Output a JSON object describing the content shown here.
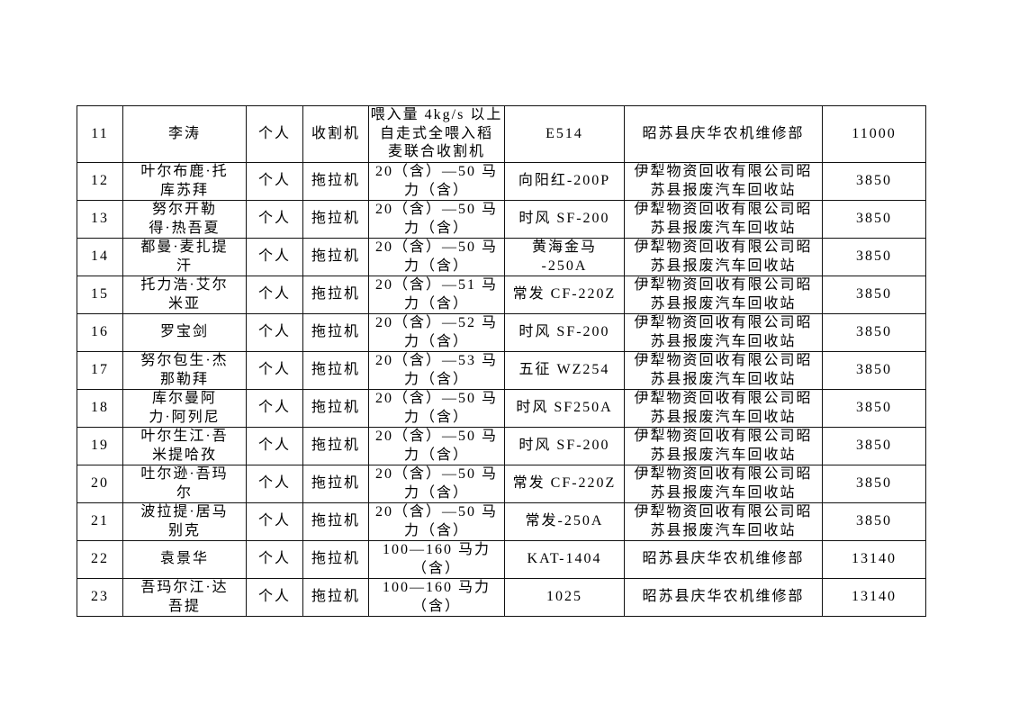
{
  "page": {
    "background_color": "#ffffff",
    "border_color": "#111111"
  },
  "table": {
    "rows": [
      {
        "no": "11",
        "name": "李涛",
        "owner_type": "个人",
        "machine_type": "收割机",
        "spec": "喂入量 4kg/s 以上\n自走式全喂入稻\n麦联合收割机",
        "model": "E514",
        "company": "昭苏县庆华农机维修部",
        "amount": "11000"
      },
      {
        "no": "12",
        "name": "叶尔布鹿·托\n库苏拜",
        "owner_type": "个人",
        "machine_type": "拖拉机",
        "spec": "20（含）—50 马\n力（含）",
        "model": "向阳红-200P",
        "company": "伊犁物资回收有限公司昭\n苏县报废汽车回收站",
        "amount": "3850"
      },
      {
        "no": "13",
        "name": "努尔开勒\n得·热吾夏",
        "owner_type": "个人",
        "machine_type": "拖拉机",
        "spec": "20（含）—50 马\n力（含）",
        "model": "时风 SF-200",
        "company": "伊犁物资回收有限公司昭\n苏县报废汽车回收站",
        "amount": "3850"
      },
      {
        "no": "14",
        "name": "都曼·麦扎提\n汗",
        "owner_type": "个人",
        "machine_type": "拖拉机",
        "spec": "20（含）—50 马\n力（含）",
        "model": "黄海金马\n-250A",
        "company": "伊犁物资回收有限公司昭\n苏县报废汽车回收站",
        "amount": "3850"
      },
      {
        "no": "15",
        "name": "托力浩·艾尔\n米亚",
        "owner_type": "个人",
        "machine_type": "拖拉机",
        "spec": "20（含）—51 马\n力（含）",
        "model": "常发 CF-220Z",
        "company": "伊犁物资回收有限公司昭\n苏县报废汽车回收站",
        "amount": "3850"
      },
      {
        "no": "16",
        "name": "罗宝剑",
        "owner_type": "个人",
        "machine_type": "拖拉机",
        "spec": "20（含）—52 马\n力（含）",
        "model": "时风 SF-200",
        "company": "伊犁物资回收有限公司昭\n苏县报废汽车回收站",
        "amount": "3850"
      },
      {
        "no": "17",
        "name": "努尔包生·杰\n那勒拜",
        "owner_type": "个人",
        "machine_type": "拖拉机",
        "spec": "20（含）—53 马\n力（含）",
        "model": "五征 WZ254",
        "company": "伊犁物资回收有限公司昭\n苏县报废汽车回收站",
        "amount": "3850"
      },
      {
        "no": "18",
        "name": "库尔曼阿\n力·阿列尼",
        "owner_type": "个人",
        "machine_type": "拖拉机",
        "spec": "20（含）—50 马\n力（含）",
        "model": "时风 SF250A",
        "company": "伊犁物资回收有限公司昭\n苏县报废汽车回收站",
        "amount": "3850"
      },
      {
        "no": "19",
        "name": "叶尔生江·吾\n米提哈孜",
        "owner_type": "个人",
        "machine_type": "拖拉机",
        "spec": "20（含）—50 马\n力（含）",
        "model": "时风 SF-200",
        "company": "伊犁物资回收有限公司昭\n苏县报废汽车回收站",
        "amount": "3850"
      },
      {
        "no": "20",
        "name": "吐尔逊·吾玛\n尔",
        "owner_type": "个人",
        "machine_type": "拖拉机",
        "spec": "20（含）—50 马\n力（含）",
        "model": "常发 CF-220Z",
        "company": "伊犁物资回收有限公司昭\n苏县报废汽车回收站",
        "amount": "3850"
      },
      {
        "no": "21",
        "name": "波拉提·居马\n别克",
        "owner_type": "个人",
        "machine_type": "拖拉机",
        "spec": "20（含）—50 马\n力（含）",
        "model": "常发-250A",
        "company": "伊犁物资回收有限公司昭\n苏县报废汽车回收站",
        "amount": "3850"
      },
      {
        "no": "22",
        "name": "袁景华",
        "owner_type": "个人",
        "machine_type": "拖拉机",
        "spec": "100—160 马力\n（含）",
        "model": "KAT-1404",
        "company": "昭苏县庆华农机维修部",
        "amount": "13140"
      },
      {
        "no": "23",
        "name": "吾玛尔江·达\n吾提",
        "owner_type": "个人",
        "machine_type": "拖拉机",
        "spec": "100—160 马力\n（含）",
        "model": "1025",
        "company": "昭苏县庆华农机维修部",
        "amount": "13140"
      }
    ]
  }
}
